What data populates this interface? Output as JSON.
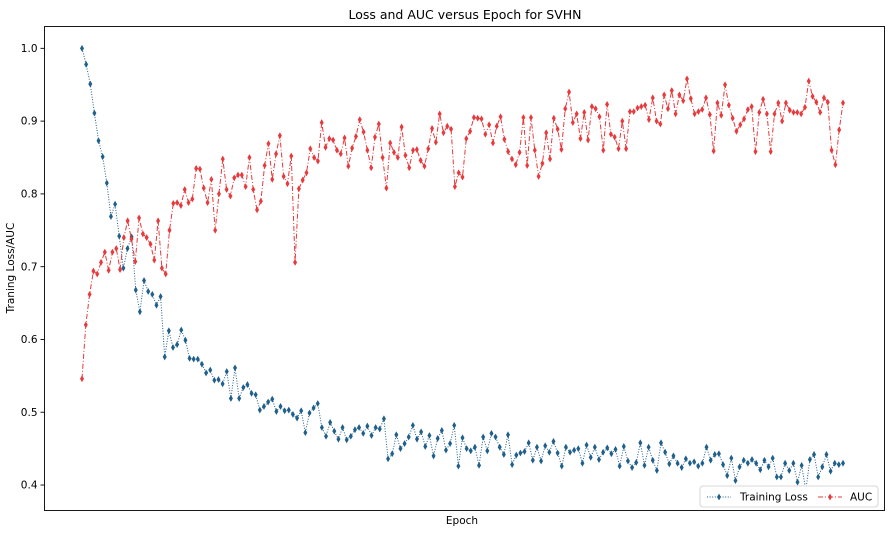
{
  "chart_data": {
    "type": "line",
    "title": "Loss and AUC versus Epoch for SVHN",
    "xlabel": "Epoch",
    "ylabel": "Traning Loss/AUC",
    "ylim": [
      0.365,
      1.03
    ],
    "yticks": [
      "0.4",
      "0.5",
      "0.6",
      "0.7",
      "0.8",
      "0.9",
      "1.0"
    ],
    "grid": false,
    "legend_position": "bottom-right",
    "series": [
      {
        "name": "Training Loss",
        "color": "#1f5f8b",
        "linestyle": "dotted",
        "marker": "thin_diamond",
        "values": [
          1.0,
          0.978,
          0.951,
          0.911,
          0.873,
          0.851,
          0.815,
          0.769,
          0.786,
          0.742,
          0.698,
          0.725,
          0.741,
          0.668,
          0.638,
          0.681,
          0.666,
          0.662,
          0.647,
          0.659,
          0.576,
          0.612,
          0.589,
          0.593,
          0.613,
          0.599,
          0.574,
          0.573,
          0.573,
          0.566,
          0.554,
          0.558,
          0.544,
          0.545,
          0.539,
          0.556,
          0.519,
          0.561,
          0.519,
          0.534,
          0.538,
          0.526,
          0.524,
          0.503,
          0.508,
          0.514,
          0.518,
          0.501,
          0.508,
          0.502,
          0.503,
          0.497,
          0.492,
          0.502,
          0.472,
          0.499,
          0.506,
          0.512,
          0.479,
          0.467,
          0.486,
          0.474,
          0.463,
          0.479,
          0.462,
          0.467,
          0.476,
          0.479,
          0.471,
          0.481,
          0.468,
          0.479,
          0.477,
          0.491,
          0.436,
          0.443,
          0.469,
          0.45,
          0.457,
          0.466,
          0.482,
          0.463,
          0.473,
          0.453,
          0.468,
          0.44,
          0.464,
          0.475,
          0.448,
          0.457,
          0.482,
          0.426,
          0.465,
          0.45,
          0.447,
          0.452,
          0.427,
          0.466,
          0.447,
          0.471,
          0.466,
          0.452,
          0.442,
          0.469,
          0.428,
          0.441,
          0.444,
          0.446,
          0.458,
          0.434,
          0.452,
          0.433,
          0.454,
          0.445,
          0.46,
          0.444,
          0.426,
          0.452,
          0.445,
          0.448,
          0.45,
          0.43,
          0.455,
          0.438,
          0.452,
          0.435,
          0.445,
          0.451,
          0.443,
          0.449,
          0.426,
          0.453,
          0.433,
          0.424,
          0.431,
          0.458,
          0.427,
          0.452,
          0.434,
          0.42,
          0.458,
          0.445,
          0.429,
          0.44,
          0.43,
          0.424,
          0.436,
          0.43,
          0.432,
          0.426,
          0.43,
          0.452,
          0.434,
          0.442,
          0.443,
          0.428,
          0.413,
          0.437,
          0.406,
          0.425,
          0.434,
          0.43,
          0.435,
          0.43,
          0.421,
          0.434,
          0.425,
          0.437,
          0.411,
          0.411,
          0.43,
          0.42,
          0.43,
          0.404,
          0.427,
          0.393,
          0.435,
          0.442,
          0.411,
          0.425,
          0.442,
          0.419,
          0.43,
          0.428,
          0.43
        ]
      },
      {
        "name": "AUC",
        "color": "#e8393c",
        "linestyle": "dashdot",
        "marker": "thin_diamond",
        "values": [
          0.546,
          0.62,
          0.662,
          0.694,
          0.69,
          0.706,
          0.72,
          0.695,
          0.72,
          0.725,
          0.696,
          0.74,
          0.763,
          0.738,
          0.707,
          0.767,
          0.745,
          0.74,
          0.731,
          0.709,
          0.763,
          0.698,
          0.69,
          0.75,
          0.787,
          0.788,
          0.784,
          0.806,
          0.788,
          0.793,
          0.835,
          0.834,
          0.808,
          0.788,
          0.82,
          0.75,
          0.8,
          0.848,
          0.806,
          0.797,
          0.822,
          0.826,
          0.826,
          0.81,
          0.85,
          0.806,
          0.778,
          0.79,
          0.839,
          0.869,
          0.82,
          0.855,
          0.88,
          0.824,
          0.814,
          0.852,
          0.706,
          0.807,
          0.819,
          0.829,
          0.862,
          0.85,
          0.845,
          0.898,
          0.864,
          0.876,
          0.874,
          0.86,
          0.855,
          0.877,
          0.838,
          0.863,
          0.879,
          0.902,
          0.885,
          0.86,
          0.836,
          0.878,
          0.896,
          0.85,
          0.808,
          0.87,
          0.857,
          0.85,
          0.892,
          0.853,
          0.836,
          0.86,
          0.861,
          0.846,
          0.838,
          0.862,
          0.89,
          0.871,
          0.91,
          0.884,
          0.893,
          0.889,
          0.81,
          0.829,
          0.823,
          0.876,
          0.886,
          0.905,
          0.904,
          0.903,
          0.882,
          0.895,
          0.87,
          0.893,
          0.906,
          0.875,
          0.858,
          0.848,
          0.84,
          0.857,
          0.905,
          0.839,
          0.905,
          0.86,
          0.824,
          0.842,
          0.884,
          0.848,
          0.904,
          0.889,
          0.861,
          0.917,
          0.94,
          0.898,
          0.91,
          0.876,
          0.912,
          0.874,
          0.92,
          0.917,
          0.906,
          0.86,
          0.923,
          0.882,
          0.878,
          0.862,
          0.9,
          0.862,
          0.913,
          0.913,
          0.918,
          0.92,
          0.922,
          0.902,
          0.932,
          0.9,
          0.896,
          0.936,
          0.917,
          0.942,
          0.91,
          0.936,
          0.928,
          0.958,
          0.931,
          0.91,
          0.913,
          0.916,
          0.932,
          0.909,
          0.859,
          0.925,
          0.908,
          0.95,
          0.922,
          0.904,
          0.886,
          0.895,
          0.903,
          0.916,
          0.92,
          0.858,
          0.912,
          0.93,
          0.91,
          0.858,
          0.91,
          0.925,
          0.9,
          0.925,
          0.915,
          0.912,
          0.912,
          0.91,
          0.919,
          0.955,
          0.934,
          0.926,
          0.912,
          0.932,
          0.926,
          0.86,
          0.84,
          0.888,
          0.925
        ]
      }
    ]
  }
}
